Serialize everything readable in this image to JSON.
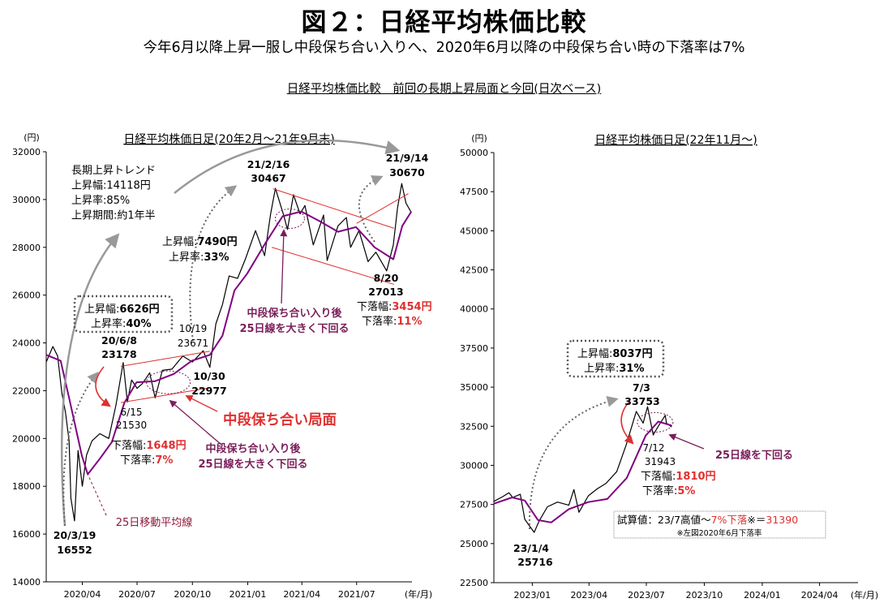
{
  "figure": {
    "title": "図２：日経平均株価比較",
    "subtitle": "今年6月以降上昇一服し中段保ち合い入りへ、2020年6月以降の中段保ち合い時の下落率は7%",
    "caption": "日経平均株価比較　前回の長期上昇局面と今回(日次ベース)"
  },
  "chart_data": [
    {
      "type": "line",
      "title": "日経平均株価日足(20年2月～21年9月末)",
      "unit_label": "(円)",
      "x_unit_label": "(年/月)",
      "ylim": [
        14000,
        32000
      ],
      "yticks": [
        14000,
        16000,
        18000,
        20000,
        22000,
        24000,
        26000,
        28000,
        30000,
        32000
      ],
      "xlim": [
        "2020-02-01",
        "2021-10-01"
      ],
      "xticks": [
        "2020/04",
        "2020/07",
        "2020/10",
        "2021/01",
        "2021/04",
        "2021/07"
      ],
      "series": [
        {
          "key": "close",
          "color": "#000000",
          "points": [
            [
              "2020-02-01",
              23200
            ],
            [
              "2020-02-12",
              23850
            ],
            [
              "2020-02-20",
              23450
            ],
            [
              "2020-02-27",
              21900
            ],
            [
              "2020-03-04",
              21100
            ],
            [
              "2020-03-10",
              19900
            ],
            [
              "2020-03-13",
              17500
            ],
            [
              "2020-03-19",
              16552
            ],
            [
              "2020-03-25",
              19500
            ],
            [
              "2020-04-01",
              18000
            ],
            [
              "2020-04-08",
              19300
            ],
            [
              "2020-04-17",
              19900
            ],
            [
              "2020-04-30",
              20200
            ],
            [
              "2020-05-15",
              20000
            ],
            [
              "2020-05-27",
              21400
            ],
            [
              "2020-06-08",
              23178
            ],
            [
              "2020-06-15",
              21530
            ],
            [
              "2020-06-22",
              22450
            ],
            [
              "2020-07-01",
              22100
            ],
            [
              "2020-07-10",
              22300
            ],
            [
              "2020-07-22",
              22750
            ],
            [
              "2020-07-31",
              21700
            ],
            [
              "2020-08-12",
              22850
            ],
            [
              "2020-08-28",
              22900
            ],
            [
              "2020-09-15",
              23450
            ],
            [
              "2020-10-01",
              23200
            ],
            [
              "2020-10-19",
              23671
            ],
            [
              "2020-10-30",
              22977
            ],
            [
              "2020-11-09",
              24800
            ],
            [
              "2020-11-20",
              25600
            ],
            [
              "2020-12-01",
              26800
            ],
            [
              "2020-12-15",
              26700
            ],
            [
              "2020-12-28",
              27500
            ],
            [
              "2021-01-14",
              28700
            ],
            [
              "2021-01-29",
              27650
            ],
            [
              "2021-02-08",
              29400
            ],
            [
              "2021-02-16",
              30467
            ],
            [
              "2021-03-01",
              29400
            ],
            [
              "2021-03-08",
              28750
            ],
            [
              "2021-03-18",
              30200
            ],
            [
              "2021-03-29",
              29400
            ],
            [
              "2021-04-06",
              29750
            ],
            [
              "2021-04-20",
              28100
            ],
            [
              "2021-05-07",
              29350
            ],
            [
              "2021-05-13",
              27450
            ],
            [
              "2021-05-31",
              28900
            ],
            [
              "2021-06-14",
              29250
            ],
            [
              "2021-06-21",
              28000
            ],
            [
              "2021-07-05",
              28700
            ],
            [
              "2021-07-20",
              27400
            ],
            [
              "2021-08-02",
              27800
            ],
            [
              "2021-08-20",
              27013
            ],
            [
              "2021-08-31",
              28100
            ],
            [
              "2021-09-07",
              29650
            ],
            [
              "2021-09-14",
              30670
            ],
            [
              "2021-09-21",
              29850
            ],
            [
              "2021-09-30",
              29450
            ]
          ]
        },
        {
          "key": "ma25",
          "name": "25日移動平均線",
          "color": "#800080",
          "points": [
            [
              "2020-02-01",
              23500
            ],
            [
              "2020-02-25",
              23250
            ],
            [
              "2020-03-10",
              21700
            ],
            [
              "2020-03-31",
              19300
            ],
            [
              "2020-04-10",
              18500
            ],
            [
              "2020-04-30",
              19150
            ],
            [
              "2020-05-20",
              19850
            ],
            [
              "2020-06-10",
              21500
            ],
            [
              "2020-06-30",
              22350
            ],
            [
              "2020-07-31",
              22400
            ],
            [
              "2020-08-31",
              22700
            ],
            [
              "2020-09-30",
              23250
            ],
            [
              "2020-10-30",
              23500
            ],
            [
              "2020-11-20",
              24300
            ],
            [
              "2020-12-10",
              26200
            ],
            [
              "2020-12-31",
              26900
            ],
            [
              "2021-01-31",
              28200
            ],
            [
              "2021-02-28",
              29300
            ],
            [
              "2021-03-31",
              29500
            ],
            [
              "2021-04-30",
              29100
            ],
            [
              "2021-05-31",
              28650
            ],
            [
              "2021-06-30",
              28850
            ],
            [
              "2021-07-31",
              28000
            ],
            [
              "2021-08-31",
              27500
            ],
            [
              "2021-09-15",
              28900
            ],
            [
              "2021-09-30",
              29500
            ]
          ]
        }
      ],
      "annotations": [
        {
          "id": "long_trend",
          "lines": [
            "長期上昇トレンド",
            "上昇幅:14118円",
            "上昇率:85%",
            "上昇期間:約1年半"
          ]
        },
        {
          "id": "low1",
          "lines": [
            "20/3/19",
            "16552"
          ]
        },
        {
          "id": "box1",
          "lines": [
            "上昇幅:",
            "6626円",
            "上昇率:",
            "40%"
          ]
        },
        {
          "id": "peak1",
          "lines": [
            "20/6/8",
            "23178"
          ]
        },
        {
          "id": "trough1",
          "lines": [
            "6/15",
            "21530"
          ]
        },
        {
          "id": "drop1",
          "lines": [
            "下落幅:",
            "1648円",
            "下落率:",
            "7%"
          ]
        },
        {
          "id": "ma_note",
          "lines": [
            "25日移動平均線"
          ]
        },
        {
          "id": "consol_note1",
          "lines": [
            "中段保ち合い入り後",
            "25日線を大きく下回る"
          ]
        },
        {
          "id": "consol_title",
          "lines": [
            "中段保ち合い局面"
          ]
        },
        {
          "id": "d1019",
          "lines": [
            "10/19",
            "23671"
          ]
        },
        {
          "id": "d1030",
          "lines": [
            "10/30",
            "22977"
          ]
        },
        {
          "id": "rise2",
          "lines": [
            "上昇幅:",
            "7490円",
            "上昇率:",
            "33%"
          ]
        },
        {
          "id": "peak2",
          "lines": [
            "21/2/16",
            "30467"
          ]
        },
        {
          "id": "consol_note2",
          "lines": [
            "中段保ち合い入り後",
            "25日線を大きく下回る"
          ]
        },
        {
          "id": "peak3",
          "lines": [
            "21/9/14",
            "30670"
          ]
        },
        {
          "id": "trough2",
          "lines": [
            "8/20",
            "27013"
          ]
        },
        {
          "id": "drop2",
          "lines": [
            "下落幅:",
            "3454円",
            "下落率:",
            "11%"
          ]
        }
      ]
    },
    {
      "type": "line",
      "title": "日経平均株価日足(22年11月～)",
      "unit_label": "(円)",
      "x_unit_label": "(年/月)",
      "ylim": [
        22500,
        50000
      ],
      "yticks": [
        22500,
        25000,
        27500,
        30000,
        32500,
        35000,
        37500,
        40000,
        42500,
        45000,
        47500,
        50000
      ],
      "xlim": [
        "2022-11-01",
        "2024-06-01"
      ],
      "xticks": [
        "2023/01",
        "2023/04",
        "2023/07",
        "2023/10",
        "2024/01",
        "2024/04"
      ],
      "series": [
        {
          "key": "close",
          "color": "#000000",
          "points": [
            [
              "2022-11-01",
              27700
            ],
            [
              "2022-11-15",
              28000
            ],
            [
              "2022-11-25",
              28250
            ],
            [
              "2022-12-01",
              27950
            ],
            [
              "2022-12-13",
              28150
            ],
            [
              "2022-12-20",
              26550
            ],
            [
              "2022-12-28",
              26100
            ],
            [
              "2023-01-04",
              25716
            ],
            [
              "2023-01-12",
              26450
            ],
            [
              "2023-01-25",
              27350
            ],
            [
              "2023-02-10",
              27650
            ],
            [
              "2023-02-28",
              27450
            ],
            [
              "2023-03-08",
              28450
            ],
            [
              "2023-03-16",
              27000
            ],
            [
              "2023-03-31",
              28050
            ],
            [
              "2023-04-14",
              28500
            ],
            [
              "2023-04-28",
              28850
            ],
            [
              "2023-05-15",
              29600
            ],
            [
              "2023-05-30",
              31300
            ],
            [
              "2023-06-15",
              33450
            ],
            [
              "2023-06-26",
              32700
            ],
            [
              "2023-07-03",
              33753
            ],
            [
              "2023-07-12",
              31943
            ],
            [
              "2023-07-20",
              32500
            ],
            [
              "2023-07-31",
              33200
            ],
            [
              "2023-08-02",
              32700
            ],
            [
              "2023-08-10",
              32450
            ]
          ]
        },
        {
          "key": "ma25",
          "color": "#800080",
          "points": [
            [
              "2022-11-01",
              27550
            ],
            [
              "2022-11-30",
              27950
            ],
            [
              "2022-12-20",
              27750
            ],
            [
              "2023-01-10",
              26500
            ],
            [
              "2023-01-31",
              26350
            ],
            [
              "2023-02-28",
              27200
            ],
            [
              "2023-03-31",
              27650
            ],
            [
              "2023-04-30",
              27850
            ],
            [
              "2023-05-31",
              29200
            ],
            [
              "2023-06-30",
              31900
            ],
            [
              "2023-07-20",
              32800
            ],
            [
              "2023-08-10",
              32550
            ]
          ]
        }
      ],
      "annotations": [
        {
          "id": "box2",
          "lines": [
            "上昇幅:",
            "8037円",
            "上昇率:",
            "31%"
          ]
        },
        {
          "id": "low2",
          "lines": [
            "23/1/4",
            "25716"
          ]
        },
        {
          "id": "peak4",
          "lines": [
            "7/3",
            "33753"
          ]
        },
        {
          "id": "trough3",
          "lines": [
            "7/12",
            "31943"
          ]
        },
        {
          "id": "drop3",
          "lines": [
            "下落幅:",
            "1810円",
            "下落率:",
            "5%"
          ]
        },
        {
          "id": "ma_note2",
          "lines": [
            "25日線を下回る"
          ]
        },
        {
          "id": "trial",
          "lines": [
            "試算値：23/7高値～",
            "7%下落",
            "※＝",
            "31390"
          ]
        },
        {
          "id": "trial_note",
          "lines": [
            "※左図2020年6月下落率"
          ]
        }
      ]
    }
  ]
}
